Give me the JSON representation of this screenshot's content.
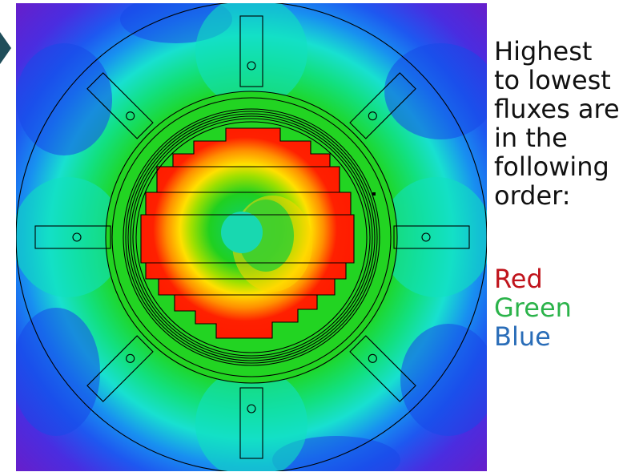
{
  "caption": {
    "line1": "Highest",
    "line2": "to lowest",
    "line3": "fluxes are",
    "line4": "in the",
    "line5": "following",
    "line6": "order:"
  },
  "legend": [
    {
      "label": "Red",
      "color": "#c0141c"
    },
    {
      "label": "Green",
      "color": "#2bb34a"
    },
    {
      "label": "Blue",
      "color": "#2a6db8"
    }
  ],
  "colors": {
    "slide_marker": "#1f4e5a",
    "flux_max": "#ff1a00",
    "flux_mid": "#28e028",
    "flux_low": "#1e5cf0",
    "flux_min": "#6a1cc8"
  }
}
